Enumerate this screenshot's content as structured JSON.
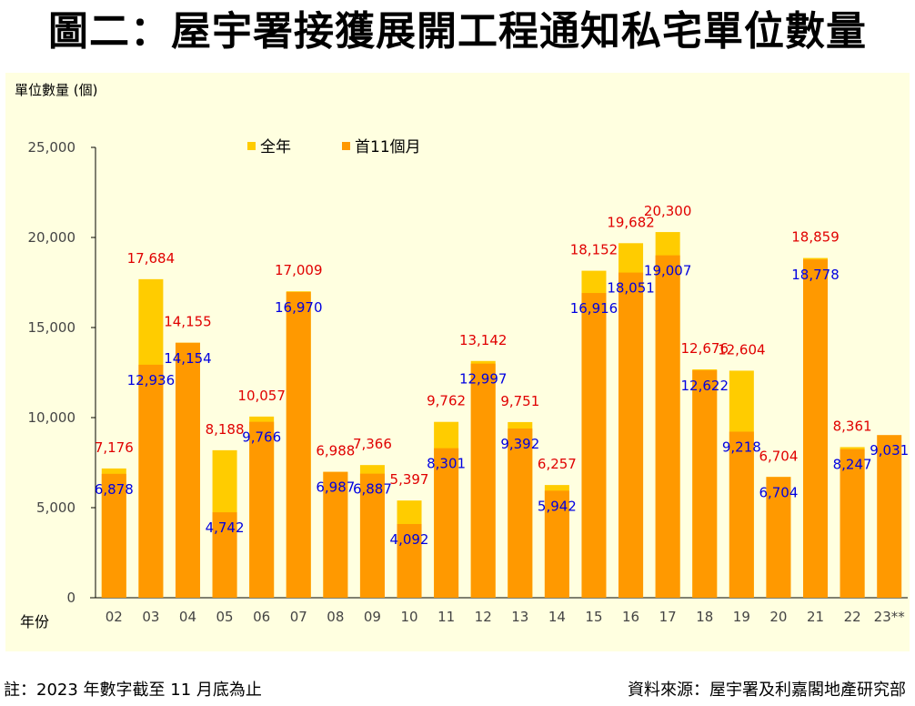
{
  "title": "圖二：屋宇署接獲展開工程通知私宅單位數量",
  "footer": {
    "note": "註：2023 年數字截至 11 月底為止",
    "source": "資料來源：屋宇署及利嘉閣地產研究部"
  },
  "colors": {
    "full_year": "#ffcc00",
    "first_11_months": "#ff9900",
    "full_year_label": "#e00000",
    "first_11_label": "#0000e0",
    "background": "#ffffe0"
  },
  "chart_data": {
    "type": "bar",
    "title": "圖二：屋宇署接獲展開工程通知私宅單位數量",
    "ylabel": "單位數量 (個)",
    "xlabel": "年份",
    "ylim": [
      0,
      25000
    ],
    "yticks": [
      0,
      5000,
      10000,
      15000,
      20000,
      25000
    ],
    "ytick_labels": [
      "0",
      "5,000",
      "10,000",
      "15,000",
      "20,000",
      "25,000"
    ],
    "grid": false,
    "legend_position": "top-center",
    "categories": [
      "02",
      "03",
      "04",
      "05",
      "06",
      "07",
      "08",
      "09",
      "10",
      "11",
      "12",
      "13",
      "14",
      "15",
      "16",
      "17",
      "18",
      "19",
      "20",
      "21",
      "22",
      "23**"
    ],
    "series": [
      {
        "name": "全年",
        "values": [
          7176,
          17684,
          14155,
          8188,
          10057,
          17009,
          6988,
          7366,
          5397,
          9762,
          13142,
          9751,
          6257,
          18152,
          19682,
          20300,
          12676,
          12604,
          6704,
          18859,
          8361,
          null
        ],
        "labels": [
          "7,176",
          "17,684",
          "14,155",
          "8,188",
          "10,057",
          "17,009",
          "6,988",
          "7,366",
          "5,397",
          "9,762",
          "13,142",
          "9,751",
          "6,257",
          "18,152",
          "19,682",
          "20,300",
          "12,676",
          "12,604",
          "6,704",
          "18,859",
          "8,361",
          ""
        ]
      },
      {
        "name": "首11個月",
        "values": [
          6878,
          12936,
          14154,
          4742,
          9766,
          16970,
          6987,
          6887,
          4092,
          8301,
          12997,
          9392,
          5942,
          16916,
          18051,
          19007,
          12622,
          9218,
          6704,
          18778,
          8247,
          9031
        ],
        "labels": [
          "6,878",
          "12,936",
          "14,154",
          "4,742",
          "9,766",
          "16,970",
          "6,987",
          "6,887",
          "4,092",
          "8,301",
          "12,997",
          "9,392",
          "5,942",
          "16,916",
          "18,051",
          "19,007",
          "12,622",
          "9,218",
          "6,704",
          "18,778",
          "8,247",
          "9,031"
        ]
      }
    ]
  }
}
